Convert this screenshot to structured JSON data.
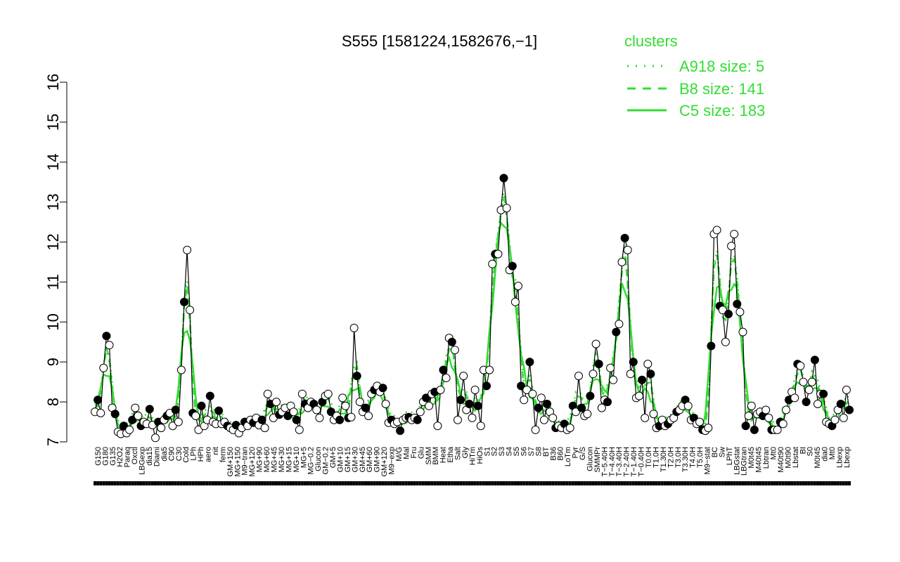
{
  "chart_data": {
    "type": "line",
    "title": "S555 [1581224,1582676,−1]",
    "xlabel": "",
    "ylabel": "",
    "ylim": [
      7,
      16
    ],
    "yticks": [
      7,
      8,
      9,
      10,
      11,
      12,
      13,
      14,
      15,
      16
    ],
    "grid": false,
    "legend_title": "clusters",
    "legend_position": "top-right",
    "legend": [
      {
        "label": "A918 size: 5",
        "style": "dotted",
        "color": "#33dd33"
      },
      {
        "label": "B8 size: 141",
        "style": "dashed",
        "color": "#33dd33"
      },
      {
        "label": "C5 size: 183",
        "style": "solid",
        "color": "#33dd33"
      }
    ],
    "colors": {
      "line": "#000000",
      "cluster": "#33dd33",
      "open_point": "#ffffff",
      "filled_point": "#000000"
    },
    "x_labels": [
      "G150",
      "G180",
      "G135",
      "H2O2",
      "Paraq",
      "Oxctl",
      "LBGexp",
      "dia15",
      "Diami",
      "dia5",
      "C90",
      "C30",
      "Cold",
      "LPh",
      "HPh",
      "aero",
      "nit",
      "ferm",
      "GM+150",
      "MG+150",
      "M9−tran",
      "MG+120",
      "MG+90",
      "MG+60",
      "MG+45",
      "MG+30",
      "MG+15",
      "MG+10",
      "MG+5",
      "MG−0.2",
      "Glucon",
      "GM−0.2",
      "GM+5",
      "GM+10",
      "GM+15",
      "GM+30",
      "GM+45",
      "GM+60",
      "GM+90",
      "GM+120",
      "M9−exp",
      "M/G",
      "Mal",
      "Fru",
      "Glu",
      "SMM",
      "BMM",
      "Heat",
      "Etha",
      "Salt",
      "Gly",
      "HiTm",
      "HiOs",
      "S1",
      "S2",
      "S3",
      "S4",
      "S5",
      "S6",
      "S7",
      "S8",
      "BT",
      "B36",
      "B60",
      "LoTm",
      "Pyr",
      "G/S",
      "Glucon",
      "SMMPr",
      "T−5.40H",
      "T−4.40H",
      "T−3.40H",
      "T−2.40H",
      "T−1.40H",
      "T−0.40H",
      "T0.0H",
      "T1.0H",
      "T1.30H",
      "T2.0H",
      "T3.0H",
      "T3.30H",
      "T4.0H",
      "T5.0H",
      "M9−stat",
      "BC",
      "Sw",
      "LPhT",
      "LBGstat",
      "LBGtran",
      "M0t45",
      "M40t45",
      "Lbtran",
      "Mt0",
      "M40t90",
      "M0t90",
      "Lbstat",
      "BI",
      "S0",
      "M0t45",
      "dia0",
      "Mt0",
      "Lbexp",
      "Lbexp"
    ],
    "series": [
      {
        "values": [
          7.75,
          8.05,
          7.72,
          8.85,
          9.65,
          9.42,
          7.85,
          7.7,
          7.25,
          7.2,
          7.4,
          7.22,
          7.3,
          7.55,
          7.85,
          7.65,
          7.4,
          7.5,
          7.45,
          7.82,
          7.42,
          7.1,
          7.5,
          7.35,
          7.55,
          7.65,
          7.72,
          7.4,
          7.8,
          7.5,
          8.8,
          10.5,
          11.8,
          10.3,
          7.72,
          7.65,
          7.3,
          7.9,
          7.4,
          7.55,
          8.15,
          7.5,
          7.45,
          7.78,
          7.45,
          7.5,
          7.4,
          7.35,
          7.3,
          7.42,
          7.22,
          7.35,
          7.5,
          7.4,
          7.55,
          7.48,
          7.6,
          7.42,
          7.55,
          7.35,
          8.2,
          7.95,
          7.6,
          8.0,
          7.68,
          7.75,
          7.85,
          7.65,
          7.9,
          7.75,
          7.55,
          7.3,
          8.2,
          7.95,
          7.85,
          8.0,
          7.95,
          7.8,
          7.6,
          8.0,
          8.15,
          8.2,
          7.75,
          7.55,
          7.65,
          7.55,
          8.1,
          7.9,
          7.6,
          7.62,
          9.85,
          8.65,
          8.0,
          7.75,
          7.85,
          7.65,
          8.2,
          8.3,
          8.4,
          8.25,
          8.35,
          7.95,
          7.48,
          7.55,
          7.45,
          7.5,
          7.28,
          7.55,
          7.6,
          7.62,
          7.55,
          7.6,
          7.55,
          7.75,
          8.0,
          8.1,
          7.9,
          8.2,
          8.25,
          7.4,
          8.3,
          8.8,
          8.6,
          9.6,
          9.5,
          9.3,
          7.55,
          8.05,
          8.65,
          7.8,
          7.95,
          7.6,
          8.3,
          7.9,
          7.4,
          8.8,
          8.4,
          8.8,
          11.45,
          11.7,
          11.7,
          12.8,
          13.6,
          12.85,
          11.3,
          11.4,
          10.5,
          10.9,
          8.4,
          8.05,
          8.3,
          9.0,
          8.2,
          7.3,
          7.85,
          8.1,
          7.55,
          7.95,
          7.75,
          7.6,
          7.35,
          7.4,
          7.35,
          7.45,
          7.3,
          7.35,
          7.9,
          7.75,
          8.65,
          7.85,
          7.65,
          7.7,
          8.15,
          8.7,
          9.45,
          8.95,
          7.85,
          8.05,
          8.0,
          8.85,
          8.55,
          9.75,
          9.95,
          11.5,
          12.1,
          11.8,
          8.7,
          9.0,
          8.1,
          8.15,
          8.55,
          7.6,
          8.95,
          8.7,
          7.7,
          7.35,
          7.4,
          7.55,
          7.4,
          7.45,
          7.55,
          7.6,
          7.75,
          7.8,
          7.9,
          8.05,
          7.9,
          7.55,
          7.6,
          7.45,
          7.5,
          7.3,
          7.28,
          7.35,
          9.4,
          12.2,
          12.3,
          10.4,
          10.3,
          9.5,
          10.2,
          11.9,
          12.2,
          10.45,
          10.25,
          9.75,
          7.4,
          7.65,
          7.9,
          7.3,
          7.7,
          7.75,
          7.65,
          7.8,
          7.6,
          7.3,
          7.3,
          7.3,
          7.5,
          7.45,
          7.8,
          8.05,
          8.25,
          8.1,
          8.95,
          8.9,
          8.5,
          8.0,
          8.3,
          8.5,
          9.05,
          7.95,
          8.2,
          8.2,
          7.5,
          7.45,
          7.4,
          7.55,
          7.8,
          7.95,
          7.6,
          8.3,
          7.8
        ]
      }
    ]
  }
}
